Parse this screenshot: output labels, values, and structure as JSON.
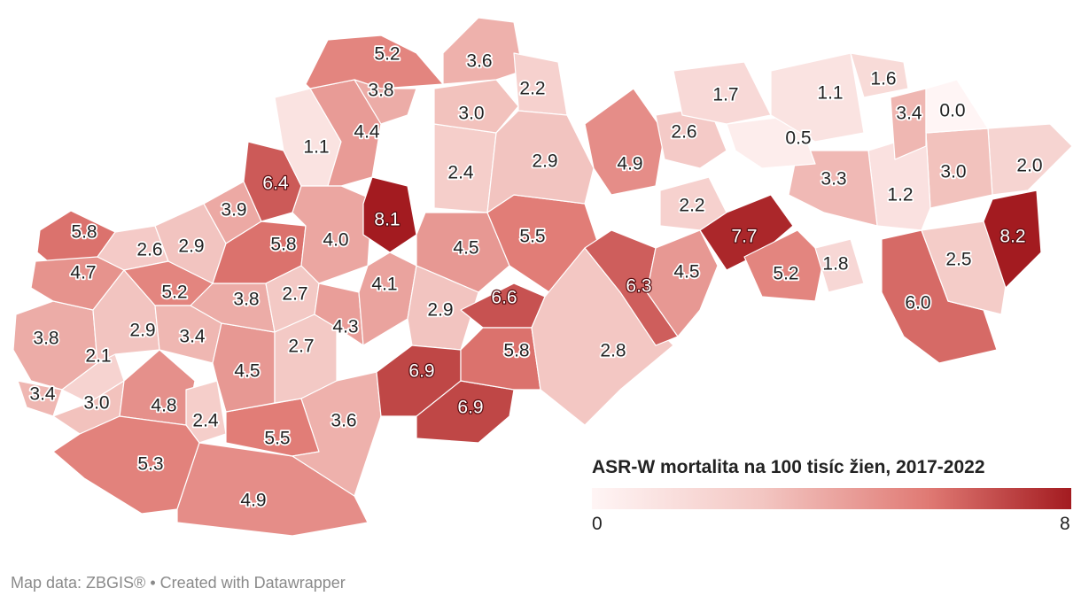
{
  "map": {
    "title": "ASR-W mortalita na 100 tisíc žien, 2017-2022",
    "districts": [
      {
        "label": "5.2"
      },
      {
        "label": "3.6"
      },
      {
        "label": "2.2"
      },
      {
        "label": "3.8"
      },
      {
        "label": "1.7"
      },
      {
        "label": "1.1"
      },
      {
        "label": "1.6"
      },
      {
        "label": "3.4"
      },
      {
        "label": "0.0"
      },
      {
        "label": "3.0"
      },
      {
        "label": "4.4"
      },
      {
        "label": "1.1"
      },
      {
        "label": "2.6"
      },
      {
        "label": "0.5"
      },
      {
        "label": "4.9"
      },
      {
        "label": "2.9"
      },
      {
        "label": "2.4"
      },
      {
        "label": "6.4"
      },
      {
        "label": "3.3"
      },
      {
        "label": "3.0"
      },
      {
        "label": "2.0"
      },
      {
        "label": "1.2"
      },
      {
        "label": "3.9"
      },
      {
        "label": "8.1"
      },
      {
        "label": "2.2"
      },
      {
        "label": "5.8"
      },
      {
        "label": "7.7"
      },
      {
        "label": "8.2"
      },
      {
        "label": "2.6"
      },
      {
        "label": "2.9"
      },
      {
        "label": "4.0"
      },
      {
        "label": "5.8"
      },
      {
        "label": "4.5"
      },
      {
        "label": "5.5"
      },
      {
        "label": "4.7"
      },
      {
        "label": "2.5"
      },
      {
        "label": "1.8"
      },
      {
        "label": "5.2"
      },
      {
        "label": "4.1"
      },
      {
        "label": "4.5"
      },
      {
        "label": "6.3"
      },
      {
        "label": "5.2"
      },
      {
        "label": "2.7"
      },
      {
        "label": "3.8"
      },
      {
        "label": "6.6"
      },
      {
        "label": "6.0"
      },
      {
        "label": "2.9"
      },
      {
        "label": "3.8"
      },
      {
        "label": "2.9"
      },
      {
        "label": "4.3"
      },
      {
        "label": "3.4"
      },
      {
        "label": "2.7"
      },
      {
        "label": "2.1"
      },
      {
        "label": "5.8"
      },
      {
        "label": "2.8"
      },
      {
        "label": "4.5"
      },
      {
        "label": "6.9"
      },
      {
        "label": "3.4"
      },
      {
        "label": "6.9"
      },
      {
        "label": "3.0"
      },
      {
        "label": "4.8"
      },
      {
        "label": "3.6"
      },
      {
        "label": "2.4"
      },
      {
        "label": "5.5"
      },
      {
        "label": "5.3"
      },
      {
        "label": "4.9"
      }
    ]
  },
  "legend": {
    "min_label": "0",
    "max_label": "8",
    "min": 0,
    "max": 8,
    "colors": [
      "#fff5f5",
      "#f3c7c3",
      "#e07a74",
      "#a31b20"
    ]
  },
  "footer": {
    "text": "Map data: ZBGIS® • Created with Datawrapper"
  }
}
